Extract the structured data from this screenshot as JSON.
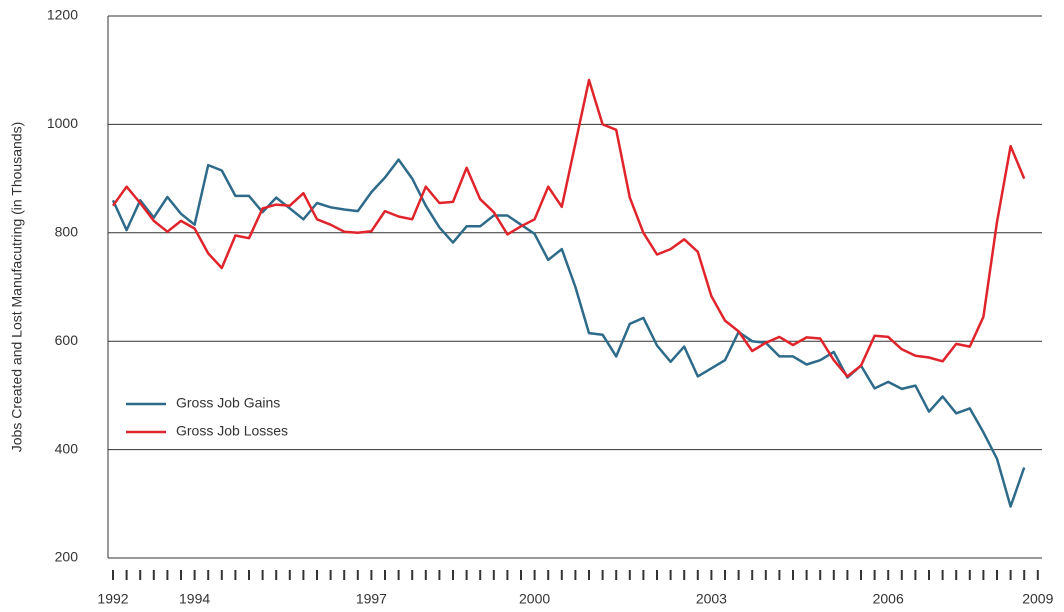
{
  "chart_data": {
    "type": "line",
    "y_label": "Jobs Created and Lost Manufacutring (in Thousands)",
    "categories": [
      "1992",
      null,
      null,
      null,
      null,
      null,
      "1994",
      null,
      null,
      null,
      null,
      null,
      null,
      null,
      null,
      null,
      null,
      null,
      null,
      "1997",
      null,
      null,
      null,
      null,
      null,
      null,
      null,
      null,
      null,
      null,
      null,
      "2000",
      null,
      null,
      null,
      null,
      null,
      null,
      null,
      null,
      null,
      null,
      null,
      null,
      "2003",
      null,
      null,
      null,
      null,
      null,
      null,
      null,
      null,
      null,
      null,
      null,
      null,
      "2006",
      null,
      null,
      null,
      null,
      null,
      null,
      null,
      null,
      null,
      null,
      "2009"
    ],
    "series": [
      {
        "name": "Gross Job Gains",
        "color": "#2e6b8a",
        "values": [
          860,
          805,
          860,
          828,
          866,
          835,
          815,
          925,
          915,
          868,
          868,
          838,
          865,
          845,
          825,
          855,
          847,
          843,
          840,
          875,
          902,
          935,
          900,
          850,
          810,
          782,
          812,
          812,
          832,
          832,
          815,
          798,
          750,
          770,
          700,
          615,
          612,
          572,
          632,
          643,
          592,
          562,
          590,
          535,
          550,
          565,
          617,
          600,
          597,
          572,
          572,
          557,
          565,
          580,
          533,
          555,
          513,
          525,
          512,
          518,
          470,
          498,
          467,
          476,
          432,
          383,
          295,
          367,
          null
        ]
      },
      {
        "name": "Gross Job Losses",
        "color": "#e0242b",
        "values": [
          850,
          885,
          855,
          822,
          802,
          822,
          808,
          762,
          735,
          795,
          790,
          845,
          852,
          850,
          873,
          825,
          815,
          802,
          800,
          803,
          840,
          830,
          825,
          885,
          855,
          857,
          920,
          862,
          838,
          797,
          812,
          825,
          885,
          848,
          965,
          1082,
          1000,
          990,
          865,
          800,
          760,
          770,
          788,
          765,
          683,
          638,
          618,
          582,
          597,
          608,
          593,
          607,
          605,
          565,
          535,
          555,
          610,
          608,
          585,
          573,
          570,
          563,
          595,
          590,
          645,
          820,
          960,
          900,
          null
        ]
      }
    ],
    "ylim": [
      200,
      1200
    ],
    "yticks": [
      200,
      400,
      600,
      800,
      1000,
      1200
    ],
    "grid": true
  }
}
